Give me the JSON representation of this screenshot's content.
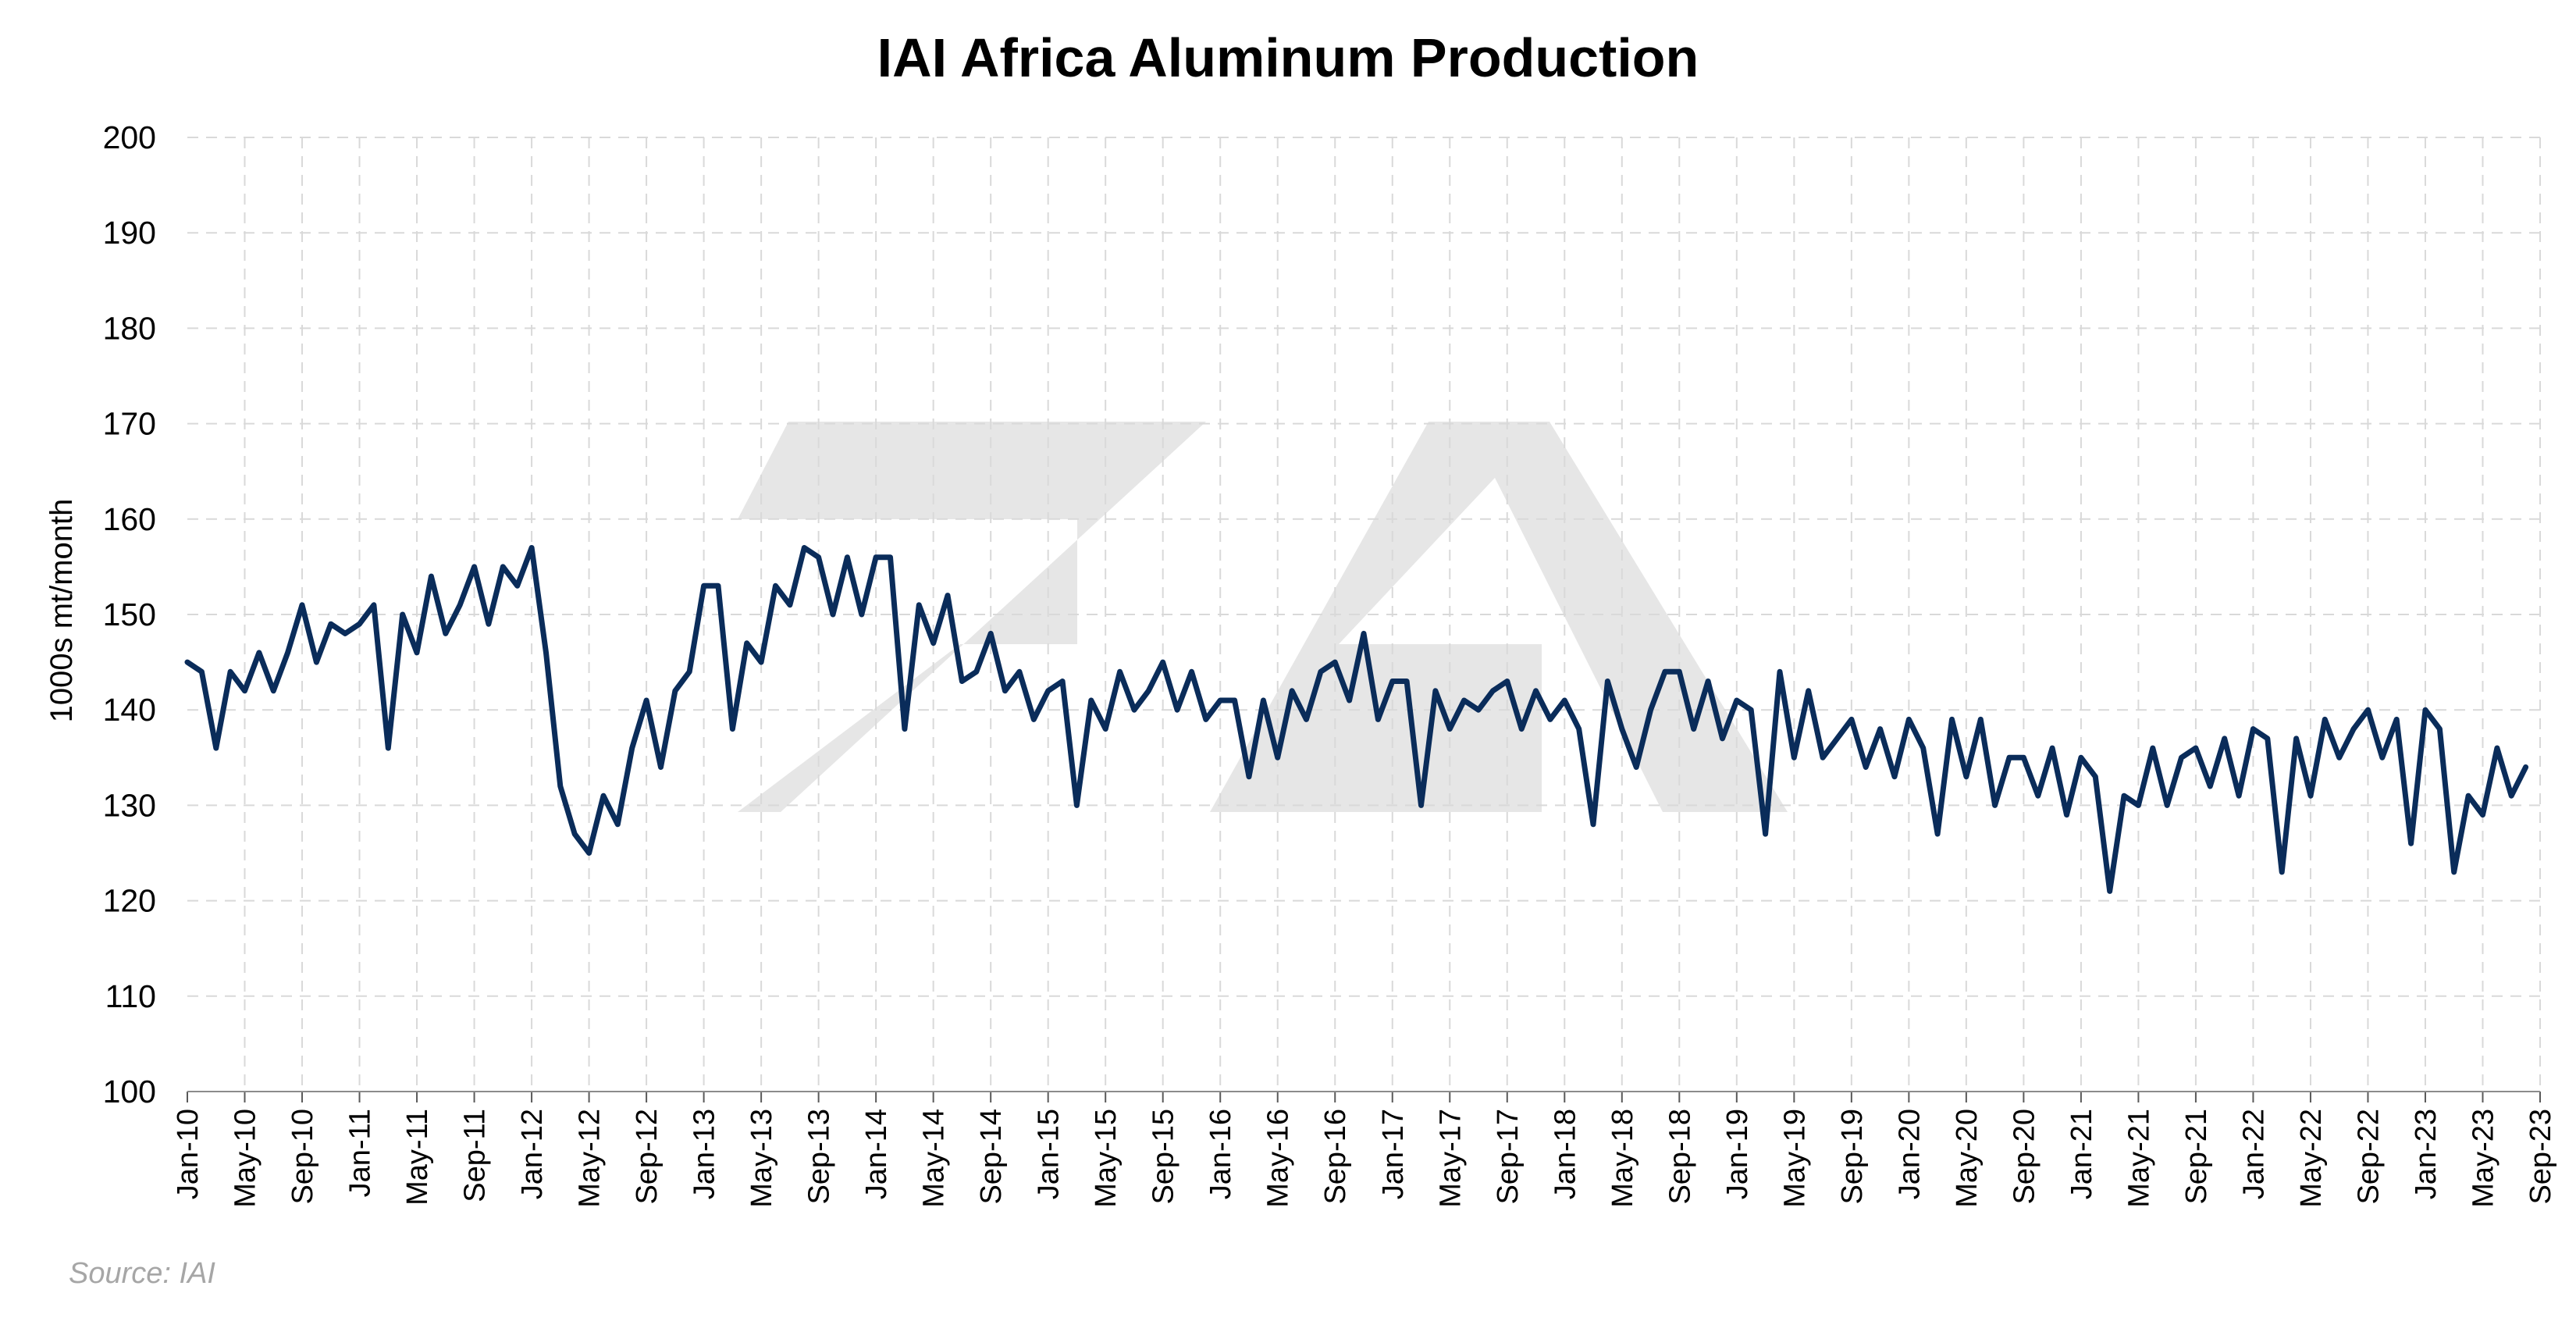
{
  "chart_data": {
    "type": "line",
    "title": "IAI Africa Aluminum Production",
    "ylabel": "1000s mt/month",
    "xlabel": "",
    "source": "Source: IAI",
    "ylim": [
      100,
      200
    ],
    "yticks": [
      100,
      110,
      120,
      130,
      140,
      150,
      160,
      170,
      180,
      190,
      200
    ],
    "x_start": "Jan-10",
    "x_ticks": [
      "Jan-10",
      "May-10",
      "Sep-10",
      "Jan-11",
      "May-11",
      "Sep-11",
      "Jan-12",
      "May-12",
      "Sep-12",
      "Jan-13",
      "May-13",
      "Sep-13",
      "Jan-14",
      "May-14",
      "Sep-14",
      "Jan-15",
      "May-15",
      "Sep-15",
      "Jan-16",
      "May-16",
      "Sep-16",
      "Jan-17",
      "May-17",
      "Sep-17",
      "Jan-18",
      "May-18",
      "Sep-18",
      "Jan-19",
      "May-19",
      "Sep-19",
      "Jan-20",
      "May-20",
      "Sep-20",
      "Jan-21",
      "May-21",
      "Sep-21",
      "Jan-22",
      "May-22",
      "Sep-22",
      "Jan-23",
      "May-23",
      "Sep-23"
    ],
    "grid": true,
    "line_color": "#0a2c5a",
    "series": [
      {
        "values": [
          145,
          144,
          136,
          144,
          142,
          146,
          142,
          146,
          151,
          145,
          149,
          148,
          149,
          151,
          136,
          150,
          146,
          154,
          148,
          151,
          155,
          149,
          155,
          153,
          157,
          146,
          132,
          127,
          125,
          131,
          128,
          136,
          141,
          134,
          142,
          144,
          153,
          153,
          138,
          147,
          145,
          153,
          151,
          157,
          156,
          150,
          156,
          150,
          156,
          156,
          138,
          151,
          147,
          152,
          143,
          144,
          148,
          142,
          144,
          139,
          142,
          143,
          130,
          141,
          138,
          144,
          140,
          142,
          145,
          140,
          144,
          139,
          141,
          141,
          133,
          141,
          135,
          142,
          139,
          144,
          145,
          141,
          148,
          139,
          143,
          143,
          130,
          142,
          138,
          141,
          140,
          142,
          143,
          138,
          142,
          139,
          141,
          138,
          128,
          143,
          138,
          134,
          140,
          144,
          144,
          138,
          143,
          137,
          141,
          140,
          127,
          144,
          135,
          142,
          135,
          137,
          139,
          134,
          138,
          133,
          139,
          136,
          127,
          139,
          133,
          139,
          130,
          135,
          135,
          131,
          136,
          129,
          135,
          133,
          121,
          131,
          130,
          136,
          130,
          135,
          136,
          132,
          137,
          131,
          138,
          137,
          123,
          137,
          131,
          139,
          135,
          138,
          140,
          135,
          139,
          126,
          140,
          138,
          123,
          131,
          129,
          136,
          131,
          134
        ]
      }
    ]
  },
  "colors": {
    "line": "#0a2c5a",
    "grid": "#d9d9d9",
    "watermark": "#e6e6e6"
  }
}
